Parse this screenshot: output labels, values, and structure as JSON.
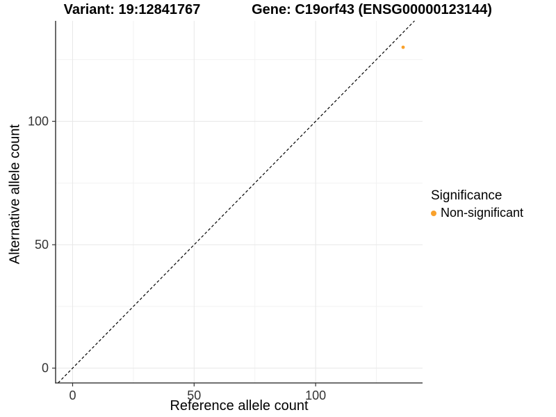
{
  "chart_data": {
    "type": "scatter",
    "title_variant": "Variant: 19:12841767",
    "title_gene": "Gene: C19orf43 (ENSG00000123144)",
    "xlabel": "Reference allele count",
    "ylabel": "Alternative allele count",
    "xlim": [
      -7,
      144
    ],
    "ylim": [
      -6,
      140.7
    ],
    "x_ticks": [
      0,
      50,
      100
    ],
    "x_tick_labels": [
      "0",
      "50",
      "100"
    ],
    "y_ticks": [
      0,
      50,
      100
    ],
    "y_tick_labels": [
      "0",
      "50",
      "100"
    ],
    "x_minor": [
      25,
      75,
      125
    ],
    "y_minor": [
      25,
      75,
      125
    ],
    "grid": "major+minor",
    "points": [
      {
        "x": 136,
        "y": 130,
        "significance": "Non-significant"
      }
    ],
    "identity_line": {
      "equation": "y = x",
      "style": "dashed"
    },
    "legend": {
      "title": "Significance",
      "position": "right",
      "entries": [
        {
          "label": "Non-significant",
          "color": "#F9A12B"
        }
      ]
    },
    "colors": {
      "point": "#F9A12B",
      "grid_major": "#E7E7E7",
      "grid_minor": "#F2F2F2",
      "axis": "#1A1A1A",
      "tick": "#333333",
      "identity_line": "#000000"
    }
  }
}
